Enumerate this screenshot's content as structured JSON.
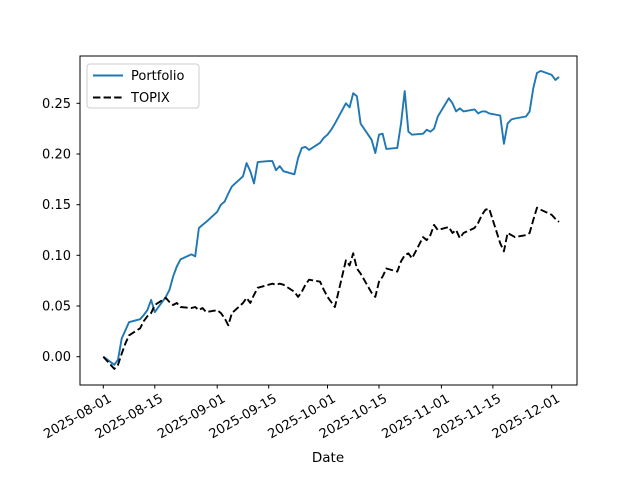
{
  "figure": {
    "background": "#ffffff",
    "title": ""
  },
  "chart_data": {
    "type": "line",
    "title": "",
    "xlabel": "Date",
    "ylabel": "",
    "grid": false,
    "legend_position": "upper left",
    "ylim": [
      -0.028,
      0.297
    ],
    "y_ticks": [
      0.0,
      0.05,
      0.1,
      0.15,
      0.2,
      0.25
    ],
    "x_tick_labels": [
      "2025-08-01",
      "2025-08-15",
      "2025-09-01",
      "2025-09-15",
      "2025-10-01",
      "2025-10-15",
      "2025-11-01",
      "2025-11-15",
      "2025-12-01"
    ],
    "x": [
      "2025-08-01",
      "2025-08-04",
      "2025-08-05",
      "2025-08-06",
      "2025-08-07",
      "2025-08-08",
      "2025-08-11",
      "2025-08-12",
      "2025-08-13",
      "2025-08-14",
      "2025-08-15",
      "2025-08-18",
      "2025-08-19",
      "2025-08-20",
      "2025-08-21",
      "2025-08-22",
      "2025-08-25",
      "2025-08-26",
      "2025-08-27",
      "2025-08-28",
      "2025-08-29",
      "2025-09-01",
      "2025-09-02",
      "2025-09-03",
      "2025-09-04",
      "2025-09-05",
      "2025-09-08",
      "2025-09-09",
      "2025-09-10",
      "2025-09-11",
      "2025-09-12",
      "2025-09-15",
      "2025-09-16",
      "2025-09-17",
      "2025-09-18",
      "2025-09-19",
      "2025-09-22",
      "2025-09-23",
      "2025-09-24",
      "2025-09-25",
      "2025-09-26",
      "2025-09-29",
      "2025-09-30",
      "2025-10-01",
      "2025-10-02",
      "2025-10-03",
      "2025-10-06",
      "2025-10-07",
      "2025-10-08",
      "2025-10-09",
      "2025-10-10",
      "2025-10-13",
      "2025-10-14",
      "2025-10-15",
      "2025-10-16",
      "2025-10-17",
      "2025-10-20",
      "2025-10-21",
      "2025-10-22",
      "2025-10-23",
      "2025-10-24",
      "2025-10-27",
      "2025-10-28",
      "2025-10-29",
      "2025-10-30",
      "2025-10-31",
      "2025-11-03",
      "2025-11-04",
      "2025-11-05",
      "2025-11-06",
      "2025-11-07",
      "2025-11-10",
      "2025-11-11",
      "2025-11-12",
      "2025-11-13",
      "2025-11-14",
      "2025-11-17",
      "2025-11-18",
      "2025-11-19",
      "2025-11-20",
      "2025-11-21",
      "2025-11-24",
      "2025-11-25",
      "2025-11-26",
      "2025-11-27",
      "2025-11-28",
      "2025-12-01",
      "2025-12-02",
      "2025-12-03"
    ],
    "series": [
      {
        "name": "Portfolio",
        "color": "#1f77b4",
        "style": "solid",
        "values": [
          0.0,
          -0.008,
          -0.003,
          0.018,
          0.026,
          0.034,
          0.037,
          0.041,
          0.046,
          0.056,
          0.044,
          0.059,
          0.066,
          0.079,
          0.089,
          0.096,
          0.101,
          0.099,
          0.127,
          0.13,
          0.133,
          0.143,
          0.15,
          0.153,
          0.161,
          0.168,
          0.178,
          0.191,
          0.183,
          0.171,
          0.192,
          0.193,
          0.193,
          0.184,
          0.188,
          0.183,
          0.18,
          0.196,
          0.206,
          0.207,
          0.204,
          0.211,
          0.216,
          0.219,
          0.224,
          0.23,
          0.25,
          0.246,
          0.26,
          0.257,
          0.23,
          0.214,
          0.201,
          0.219,
          0.22,
          0.205,
          0.206,
          0.23,
          0.262,
          0.222,
          0.219,
          0.22,
          0.224,
          0.222,
          0.225,
          0.237,
          0.255,
          0.25,
          0.242,
          0.245,
          0.242,
          0.244,
          0.24,
          0.242,
          0.242,
          0.24,
          0.238,
          0.21,
          0.23,
          0.234,
          0.235,
          0.237,
          0.242,
          0.265,
          0.28,
          0.282,
          0.278,
          0.273,
          0.276
        ]
      },
      {
        "name": "TOPIX",
        "color": "#000000",
        "style": "dashed",
        "values": [
          0.0,
          -0.012,
          -0.008,
          0.003,
          0.013,
          0.021,
          0.028,
          0.035,
          0.04,
          0.043,
          0.051,
          0.058,
          0.054,
          0.051,
          0.053,
          0.049,
          0.048,
          0.049,
          0.046,
          0.048,
          0.044,
          0.046,
          0.043,
          0.038,
          0.031,
          0.043,
          0.053,
          0.058,
          0.053,
          0.061,
          0.068,
          0.071,
          0.072,
          0.071,
          0.072,
          0.071,
          0.064,
          0.059,
          0.064,
          0.071,
          0.076,
          0.074,
          0.066,
          0.059,
          0.054,
          0.049,
          0.095,
          0.09,
          0.102,
          0.087,
          0.082,
          0.063,
          0.059,
          0.074,
          0.079,
          0.087,
          0.084,
          0.094,
          0.1,
          0.102,
          0.097,
          0.118,
          0.115,
          0.12,
          0.13,
          0.125,
          0.128,
          0.122,
          0.125,
          0.117,
          0.122,
          0.127,
          0.132,
          0.14,
          0.145,
          0.146,
          0.112,
          0.104,
          0.122,
          0.12,
          0.118,
          0.12,
          0.122,
          0.135,
          0.147,
          0.145,
          0.14,
          0.136,
          0.133
        ]
      }
    ]
  }
}
